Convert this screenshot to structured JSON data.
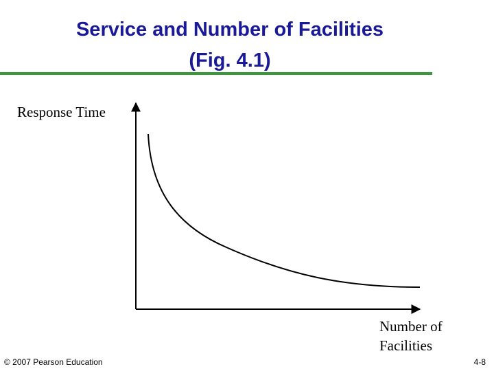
{
  "header": {
    "title_lines": [
      "Service and Number of Facilities",
      "(Fig. 4.1)"
    ]
  },
  "diagram": {
    "y_axis_label": "Response Time",
    "x_axis_label_lines": [
      "Number of",
      "Facilities"
    ]
  },
  "footer": {
    "copyright": "© 2007 Pearson Education",
    "page": "4-8"
  }
}
